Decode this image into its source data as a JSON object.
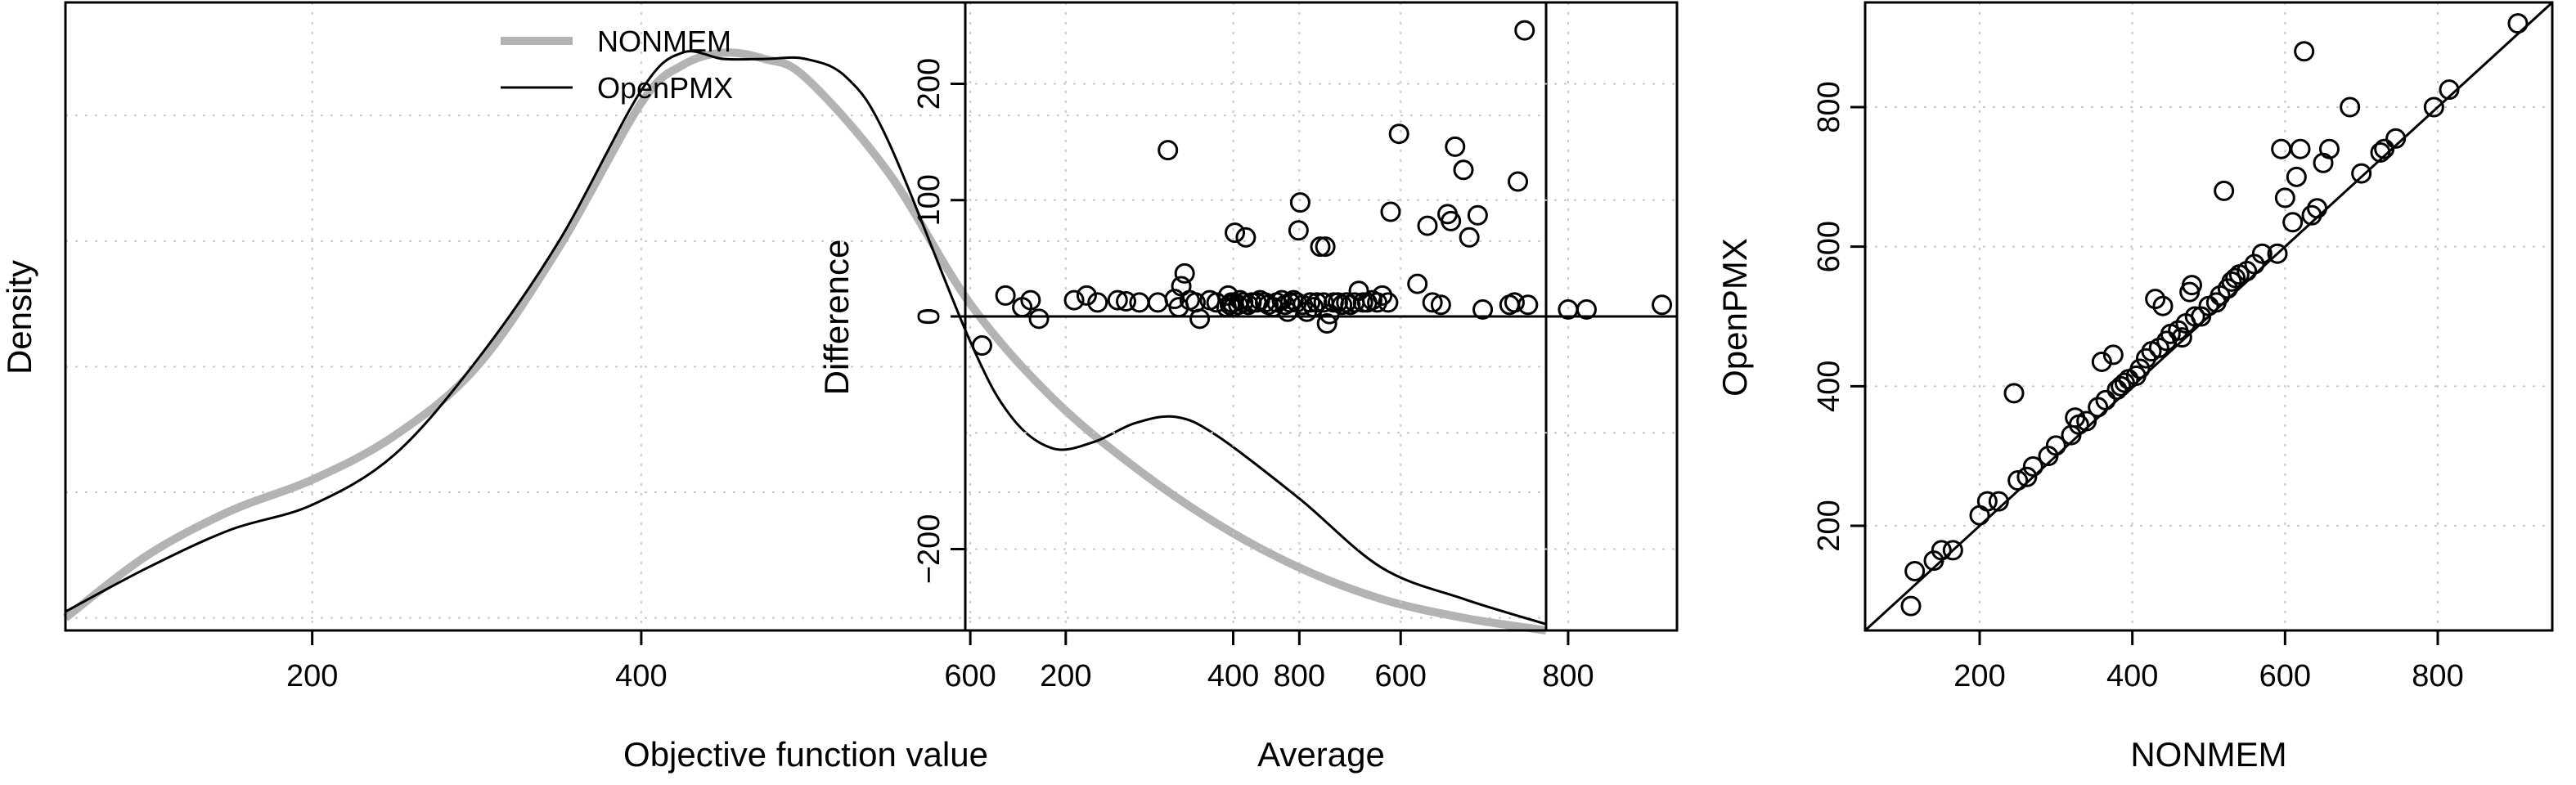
{
  "chart_data": [
    {
      "type": "line",
      "title": "",
      "xlabel": "Objective function value",
      "ylabel": "Density",
      "xlim": [
        50,
        950
      ],
      "ylim": [
        0,
        1
      ],
      "grid": true,
      "legend_position": "top-right",
      "xticks": [
        200,
        400,
        600,
        800
      ],
      "xtick_labels": [
        "200",
        "400",
        "600",
        "800"
      ],
      "series": [
        {
          "name": "NONMEM",
          "color": "#b3b3b3",
          "x": [
            50,
            100,
            150,
            200,
            250,
            300,
            350,
            400,
            425,
            450,
            475,
            500,
            550,
            600,
            650,
            700,
            750,
            800,
            850,
            900,
            950
          ],
          "y": [
            0.02,
            0.12,
            0.19,
            0.24,
            0.31,
            0.42,
            0.61,
            0.84,
            0.9,
            0.92,
            0.91,
            0.88,
            0.73,
            0.52,
            0.37,
            0.26,
            0.17,
            0.1,
            0.05,
            0.02,
            0.0
          ]
        },
        {
          "name": "OpenPMX",
          "color": "#000000",
          "x": [
            50,
            100,
            150,
            200,
            250,
            300,
            350,
            400,
            425,
            450,
            475,
            500,
            525,
            550,
            600,
            625,
            650,
            675,
            700,
            725,
            750,
            800,
            850,
            900,
            950
          ],
          "y": [
            0.03,
            0.1,
            0.16,
            0.2,
            0.28,
            0.43,
            0.62,
            0.86,
            0.92,
            0.91,
            0.91,
            0.91,
            0.88,
            0.78,
            0.46,
            0.34,
            0.29,
            0.3,
            0.33,
            0.34,
            0.31,
            0.21,
            0.1,
            0.05,
            0.01
          ]
        }
      ]
    },
    {
      "type": "scatter",
      "title": "",
      "xlabel": "Average",
      "ylabel": "Difference",
      "xlim": [
        80,
        930
      ],
      "ylim": [
        -270,
        270
      ],
      "grid": true,
      "hline": 0,
      "xticks": [
        200,
        400,
        600,
        800
      ],
      "xtick_labels": [
        "200",
        "400",
        "600",
        "800"
      ],
      "yticks": [
        -200,
        0,
        100,
        200
      ],
      "ytick_labels": [
        "−200",
        "0",
        "100",
        "200"
      ],
      "points": [
        [
          100,
          -25
        ],
        [
          128,
          18
        ],
        [
          148,
          8
        ],
        [
          158,
          14
        ],
        [
          168,
          -2
        ],
        [
          210,
          14
        ],
        [
          225,
          18
        ],
        [
          238,
          12
        ],
        [
          262,
          14
        ],
        [
          272,
          13
        ],
        [
          288,
          12
        ],
        [
          310,
          12
        ],
        [
          322,
          143
        ],
        [
          330,
          15
        ],
        [
          335,
          8
        ],
        [
          338,
          26
        ],
        [
          342,
          37
        ],
        [
          348,
          14
        ],
        [
          355,
          12
        ],
        [
          360,
          -2
        ],
        [
          372,
          14
        ],
        [
          380,
          12
        ],
        [
          392,
          8
        ],
        [
          394,
          18
        ],
        [
          396,
          10
        ],
        [
          398,
          12
        ],
        [
          400,
          8
        ],
        [
          402,
          72
        ],
        [
          406,
          10
        ],
        [
          408,
          14
        ],
        [
          412,
          12
        ],
        [
          415,
          68
        ],
        [
          418,
          10
        ],
        [
          422,
          12
        ],
        [
          428,
          12
        ],
        [
          432,
          14
        ],
        [
          438,
          12
        ],
        [
          442,
          10
        ],
        [
          448,
          8
        ],
        [
          452,
          12
        ],
        [
          458,
          14
        ],
        [
          462,
          10
        ],
        [
          465,
          4
        ],
        [
          468,
          12
        ],
        [
          472,
          14
        ],
        [
          476,
          12
        ],
        [
          478,
          74
        ],
        [
          480,
          98
        ],
        [
          483,
          10
        ],
        [
          488,
          4
        ],
        [
          492,
          12
        ],
        [
          496,
          8
        ],
        [
          500,
          12
        ],
        [
          504,
          60
        ],
        [
          508,
          12
        ],
        [
          510,
          60
        ],
        [
          512,
          -6
        ],
        [
          515,
          2
        ],
        [
          520,
          12
        ],
        [
          525,
          12
        ],
        [
          530,
          10
        ],
        [
          535,
          12
        ],
        [
          540,
          10
        ],
        [
          545,
          12
        ],
        [
          550,
          22
        ],
        [
          555,
          12
        ],
        [
          560,
          12
        ],
        [
          566,
          14
        ],
        [
          572,
          12
        ],
        [
          578,
          18
        ],
        [
          585,
          12
        ],
        [
          588,
          90
        ],
        [
          598,
          157
        ],
        [
          620,
          28
        ],
        [
          632,
          78
        ],
        [
          638,
          12
        ],
        [
          648,
          10
        ],
        [
          656,
          88
        ],
        [
          660,
          82
        ],
        [
          665,
          146
        ],
        [
          675,
          126
        ],
        [
          682,
          68
        ],
        [
          692,
          87
        ],
        [
          698,
          6
        ],
        [
          730,
          10
        ],
        [
          736,
          12
        ],
        [
          740,
          116
        ],
        [
          748,
          246
        ],
        [
          752,
          10
        ],
        [
          800,
          6
        ],
        [
          822,
          6
        ],
        [
          912,
          10
        ]
      ]
    },
    {
      "type": "scatter",
      "title": "",
      "xlabel": "NONMEM",
      "ylabel": "OpenPMX",
      "xlim": [
        50,
        950
      ],
      "ylim": [
        50,
        950
      ],
      "grid": true,
      "identity_line": true,
      "xticks": [
        200,
        400,
        600,
        800
      ],
      "xtick_labels": [
        "200",
        "400",
        "600",
        "800"
      ],
      "yticks": [
        200,
        400,
        600,
        800
      ],
      "ytick_labels": [
        "200",
        "400",
        "600",
        "800"
      ],
      "points": [
        [
          110,
          85
        ],
        [
          115,
          135
        ],
        [
          140,
          150
        ],
        [
          150,
          165
        ],
        [
          165,
          165
        ],
        [
          200,
          215
        ],
        [
          210,
          235
        ],
        [
          225,
          235
        ],
        [
          245,
          390
        ],
        [
          250,
          265
        ],
        [
          262,
          270
        ],
        [
          270,
          285
        ],
        [
          290,
          300
        ],
        [
          300,
          315
        ],
        [
          320,
          330
        ],
        [
          325,
          355
        ],
        [
          330,
          345
        ],
        [
          340,
          350
        ],
        [
          355,
          370
        ],
        [
          360,
          435
        ],
        [
          365,
          380
        ],
        [
          375,
          445
        ],
        [
          380,
          395
        ],
        [
          385,
          400
        ],
        [
          390,
          405
        ],
        [
          395,
          410
        ],
        [
          405,
          415
        ],
        [
          410,
          425
        ],
        [
          418,
          440
        ],
        [
          425,
          450
        ],
        [
          430,
          525
        ],
        [
          435,
          455
        ],
        [
          440,
          515
        ],
        [
          445,
          465
        ],
        [
          450,
          475
        ],
        [
          460,
          480
        ],
        [
          465,
          470
        ],
        [
          470,
          490
        ],
        [
          475,
          535
        ],
        [
          478,
          545
        ],
        [
          482,
          500
        ],
        [
          490,
          500
        ],
        [
          500,
          515
        ],
        [
          510,
          520
        ],
        [
          515,
          530
        ],
        [
          520,
          680
        ],
        [
          525,
          540
        ],
        [
          530,
          550
        ],
        [
          535,
          555
        ],
        [
          540,
          560
        ],
        [
          550,
          565
        ],
        [
          560,
          575
        ],
        [
          570,
          590
        ],
        [
          590,
          590
        ],
        [
          595,
          740
        ],
        [
          600,
          670
        ],
        [
          610,
          635
        ],
        [
          615,
          700
        ],
        [
          620,
          740
        ],
        [
          625,
          880
        ],
        [
          635,
          645
        ],
        [
          642,
          655
        ],
        [
          650,
          720
        ],
        [
          658,
          740
        ],
        [
          685,
          800
        ],
        [
          700,
          705
        ],
        [
          725,
          735
        ],
        [
          730,
          740
        ],
        [
          745,
          755
        ],
        [
          795,
          800
        ],
        [
          815,
          825
        ],
        [
          905,
          920
        ]
      ]
    }
  ]
}
